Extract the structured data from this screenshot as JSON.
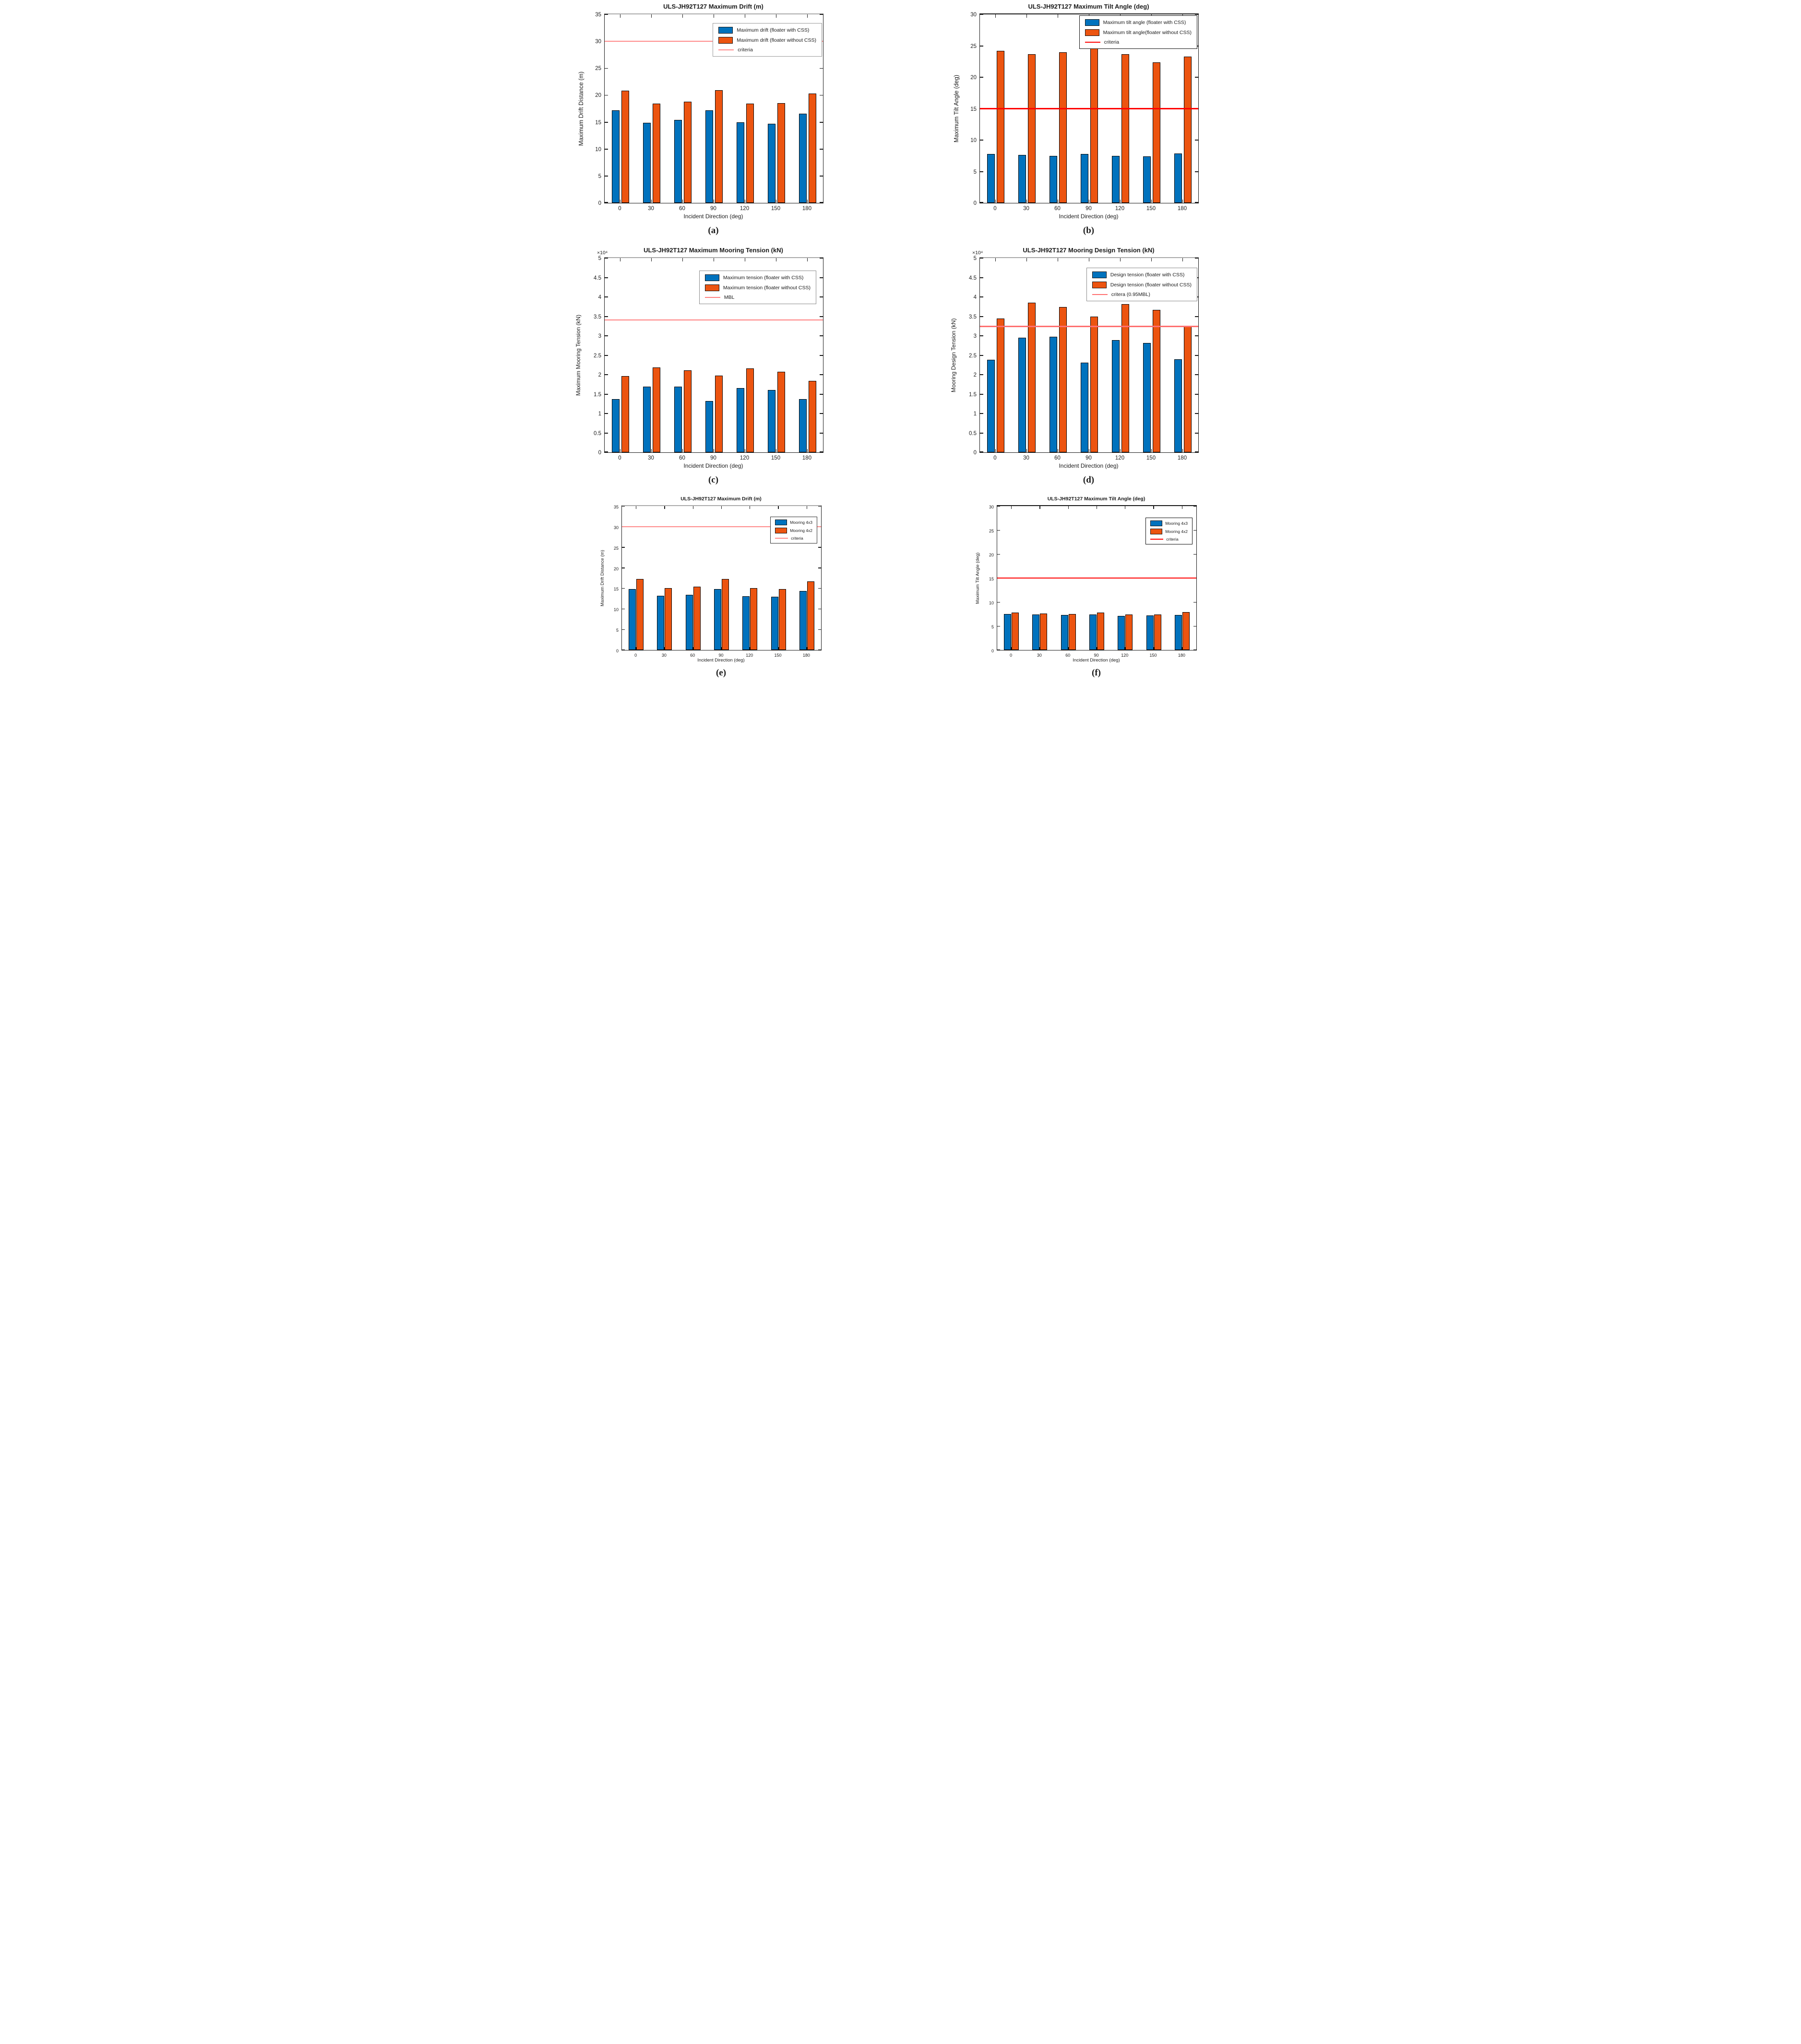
{
  "figure_background": "#ffffff",
  "colors": {
    "series_blue": "#0072BD",
    "series_orange": "#EC5410",
    "bar_edge": "#000000",
    "axis": "#1a1a1a"
  },
  "chart_data": [
    {
      "sublabel": "(a)",
      "type": "bar",
      "title": "ULS-JH92T127 Maximum Drift (m)",
      "xlabel": "Incident Direction (deg)",
      "ylabel": "Maximum Drift Distance (m)",
      "categories": [
        "0",
        "30",
        "60",
        "90",
        "120",
        "150",
        "180"
      ],
      "series": [
        {
          "name": "Maximum drift (floater with CSS)",
          "color": "#0072BD",
          "values": [
            17.2,
            14.9,
            15.4,
            17.2,
            15.0,
            14.7,
            16.6
          ]
        },
        {
          "name": "Maximum drift (floater without CSS)",
          "color": "#EC5410",
          "values": [
            20.8,
            18.4,
            18.8,
            20.9,
            18.4,
            18.5,
            20.3
          ]
        }
      ],
      "criteria": {
        "label": "criteria",
        "value": 30,
        "color": "#FF8A8A"
      },
      "ylim": [
        0,
        35
      ],
      "yticks": [
        0,
        5,
        10,
        15,
        20,
        25,
        30,
        35
      ],
      "exponent": "",
      "grid": "off",
      "legend": {
        "position": "top-right",
        "inset_top": 18,
        "inset_right": 2,
        "border": "#9a9a9a"
      },
      "size": "lg1",
      "top_border": "#ababab"
    },
    {
      "sublabel": "(b)",
      "type": "bar",
      "title": "ULS-JH92T127 Maximum Tilt Angle (deg)",
      "xlabel": "Incident Direction (deg)",
      "ylabel": "Maximum Tilt Angle (deg)",
      "categories": [
        "0",
        "30",
        "60",
        "90",
        "120",
        "150",
        "180"
      ],
      "series": [
        {
          "name": "Maximum tilt angle (floater with CSS)",
          "color": "#0072BD",
          "values": [
            7.8,
            7.6,
            7.5,
            7.8,
            7.5,
            7.4,
            7.9
          ]
        },
        {
          "name": "Maximum tilt angle(floater without CSS)",
          "color": "#EC5410",
          "values": [
            24.2,
            23.7,
            24.0,
            24.7,
            23.7,
            22.4,
            23.3
          ]
        }
      ],
      "criteria": {
        "label": "criteria",
        "value": 15,
        "color": "#FF0000"
      },
      "ylim": [
        0,
        30
      ],
      "yticks": [
        0,
        5,
        10,
        15,
        20,
        25,
        30
      ],
      "exponent": "",
      "grid": "off",
      "legend": {
        "position": "top-right",
        "inset_top": 2,
        "inset_right": 2,
        "border": "#111111"
      },
      "size": "lg1",
      "top_border": "#1a1a1a"
    },
    {
      "sublabel": "(c)",
      "type": "bar",
      "title": "ULS-JH92T127 Maximum Mooring Tension (kN)",
      "xlabel": "Incident Direction (deg)",
      "ylabel": "Maximum Mooring Tension (kN)",
      "categories": [
        "0",
        "30",
        "60",
        "90",
        "120",
        "150",
        "180"
      ],
      "series": [
        {
          "name": "Maximum tension (floater with CSS)",
          "color": "#0072BD",
          "values": [
            1.37,
            1.69,
            1.69,
            1.32,
            1.65,
            1.6,
            1.37
          ]
        },
        {
          "name": "Maximum tension (floater without CSS)",
          "color": "#EC5410",
          "values": [
            1.96,
            2.18,
            2.11,
            1.98,
            2.16,
            2.08,
            1.84
          ]
        }
      ],
      "criteria": {
        "label": "MBL",
        "value": 3.41,
        "color": "#FF8080"
      },
      "ylim": [
        0,
        5
      ],
      "yticks": [
        0,
        0.5,
        1,
        1.5,
        2,
        2.5,
        3,
        3.5,
        4,
        4.5,
        5
      ],
      "exponent": "×10⁴",
      "grid": "off",
      "legend": {
        "position": "top-right",
        "inset_top": 26,
        "inset_right": 14,
        "border": "#8c8c8c"
      },
      "size": "lg2",
      "top_border": "#ababab"
    },
    {
      "sublabel": "(d)",
      "type": "bar",
      "title": "ULS-JH92T127 Mooring Design Tension (kN)",
      "xlabel": "Incident Direction (deg)",
      "ylabel": "Mooring Design Tension (kN)",
      "categories": [
        "0",
        "30",
        "60",
        "90",
        "120",
        "150",
        "180"
      ],
      "series": [
        {
          "name": "Design tension (floater with CSS)",
          "color": "#0072BD",
          "values": [
            2.38,
            2.95,
            2.97,
            2.31,
            2.89,
            2.81,
            2.39
          ]
        },
        {
          "name": "Design tension (floater without CSS)",
          "color": "#EC5410",
          "values": [
            3.44,
            3.85,
            3.74,
            3.5,
            3.81,
            3.67,
            3.24
          ]
        }
      ],
      "criteria": {
        "label": "critera (0.95MBL)",
        "value": 3.24,
        "color": "#FF7070"
      },
      "ylim": [
        0,
        5
      ],
      "yticks": [
        0,
        0.5,
        1,
        1.5,
        2,
        2.5,
        3,
        3.5,
        4,
        4.5,
        5
      ],
      "exponent": "×10⁴",
      "grid": "off",
      "legend": {
        "position": "top-right",
        "inset_top": 20,
        "inset_right": 2,
        "border": "#8c8c8c"
      },
      "size": "lg2",
      "top_border": "#ababab"
    },
    {
      "sublabel": "(e)",
      "type": "bar",
      "title": "ULS-JH92T127 Maximum Drift (m)",
      "xlabel": "Incident Direction (deg)",
      "ylabel": "Maximum Drift Distance (m)",
      "categories": [
        "0",
        "30",
        "60",
        "90",
        "120",
        "150",
        "180"
      ],
      "series": [
        {
          "name": "Mooring 4x3",
          "color": "#0072BD",
          "values": [
            14.8,
            13.2,
            13.4,
            14.8,
            13.1,
            12.9,
            14.3
          ]
        },
        {
          "name": "Mooring 4x2",
          "color": "#EC5410",
          "values": [
            17.3,
            15.0,
            15.4,
            17.3,
            15.1,
            14.8,
            16.7
          ]
        }
      ],
      "criteria": {
        "label": "criteria",
        "value": 30,
        "color": "#FF8A8A"
      },
      "ylim": [
        0,
        35
      ],
      "yticks": [
        0,
        5,
        10,
        15,
        20,
        25,
        30,
        35
      ],
      "exponent": "",
      "grid": "off",
      "legend": {
        "position": "top-right",
        "inset_top": 22,
        "inset_right": 8,
        "border": "#333333"
      },
      "size": "sm",
      "top_border": "#ababab"
    },
    {
      "sublabel": "(f)",
      "type": "bar",
      "title": "ULS-JH92T127 Maximum Tilt Angle (deg)",
      "xlabel": "Incident Direction (deg)",
      "ylabel": "Maximum Tilt Angle (deg)",
      "categories": [
        "0",
        "30",
        "60",
        "90",
        "120",
        "150",
        "180"
      ],
      "series": [
        {
          "name": "Mooring 4x3",
          "color": "#0072BD",
          "values": [
            7.5,
            7.4,
            7.3,
            7.4,
            7.1,
            7.2,
            7.3
          ]
        },
        {
          "name": "Mooring 4x2",
          "color": "#EC5410",
          "values": [
            7.8,
            7.65,
            7.55,
            7.8,
            7.45,
            7.4,
            7.9
          ]
        }
      ],
      "criteria": {
        "label": "criteria",
        "value": 15,
        "color": "#FF0000"
      },
      "ylim": [
        0,
        30
      ],
      "yticks": [
        0,
        5,
        10,
        15,
        20,
        25,
        30
      ],
      "exponent": "",
      "grid": "off",
      "legend": {
        "position": "top-right",
        "inset_top": 24,
        "inset_right": 8,
        "border": "#111111"
      },
      "size": "sm",
      "top_border": "#1a1a1a"
    }
  ]
}
